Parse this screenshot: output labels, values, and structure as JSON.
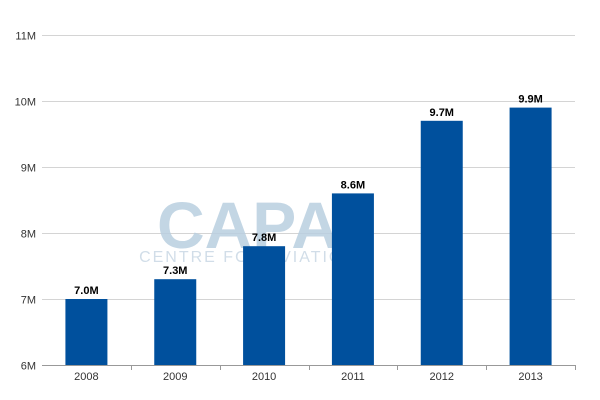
{
  "watermark": {
    "logo": "CAPA",
    "subtitle": "CENTRE FOR AVIATION"
  },
  "colors": {
    "bar": "#00509d",
    "grid": "#d4d4d4",
    "axis": "#999999",
    "tick_text": "#333333",
    "watermark": "#b9cfe0"
  },
  "chart_data": {
    "type": "bar",
    "title": "",
    "xlabel": "",
    "ylabel": "",
    "categories": [
      "2008",
      "2009",
      "2010",
      "2011",
      "2012",
      "2013"
    ],
    "values": [
      7.0,
      7.3,
      7.8,
      8.6,
      9.7,
      9.9
    ],
    "data_labels": [
      "7.0M",
      "7.3M",
      "7.8M",
      "8.6M",
      "9.7M",
      "9.9M"
    ],
    "ylim": [
      6,
      11
    ],
    "yticks": [
      6,
      7,
      8,
      9,
      10,
      11
    ],
    "ytick_labels": [
      "6M",
      "7M",
      "8M",
      "9M",
      "10M",
      "11M"
    ],
    "grid": true,
    "legend": "none"
  }
}
